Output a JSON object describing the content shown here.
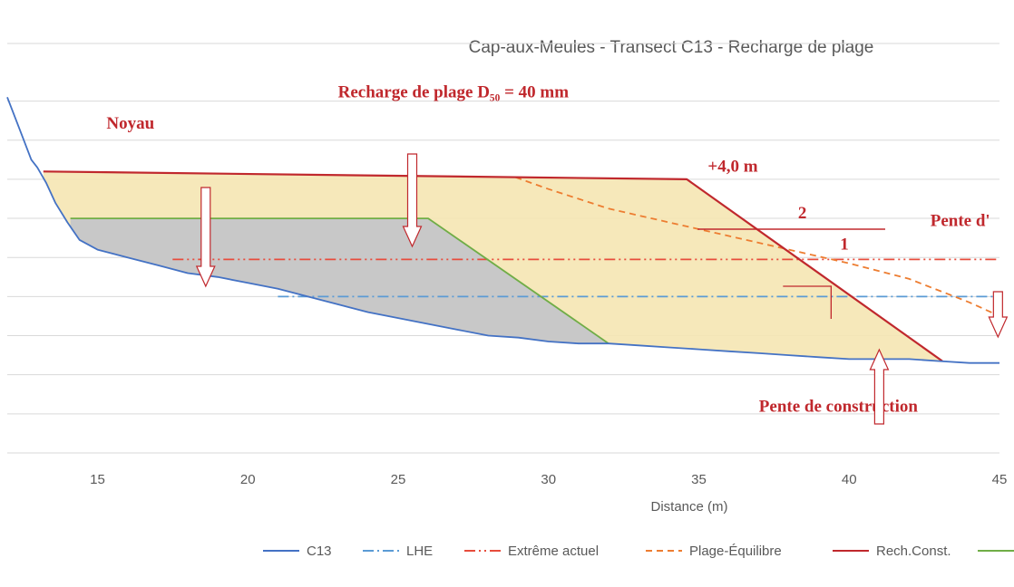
{
  "chart_data": {
    "type": "area",
    "title": "Cap-aux-Meules - Transect C13 - Recharge de plage",
    "xlabel": "Distance (m)",
    "ylabel": "",
    "xlim": [
      12,
      45
    ],
    "ylim": [
      -1,
      8.5
    ],
    "x_ticks": [
      15,
      20,
      25,
      30,
      35,
      40,
      45
    ],
    "x_tick_labels": [
      "15",
      "20",
      "25",
      "30",
      "35",
      "40",
      "45"
    ],
    "grid": true,
    "legend_position": "bottom",
    "series": [
      {
        "name": "C13",
        "color": "#4472c4",
        "style": "solid",
        "x": [
          12.0,
          12.4,
          12.8,
          13.0,
          13.3,
          13.6,
          14.0,
          14.4,
          15.0,
          16.0,
          17.0,
          18.0,
          19.0,
          20.0,
          21.0,
          22.0,
          23.0,
          24.0,
          25.0,
          26.0,
          27.0,
          28.0,
          29.0,
          30.0,
          31.0,
          32.0,
          33.0,
          34.0,
          35.0,
          36.0,
          37.0,
          38.0,
          39.0,
          40.0,
          41.0,
          42.0,
          43.0,
          44.0,
          45.0
        ],
        "y": [
          8.1,
          7.3,
          6.5,
          6.3,
          5.9,
          5.4,
          4.9,
          4.45,
          4.2,
          4.0,
          3.8,
          3.6,
          3.5,
          3.35,
          3.2,
          3.0,
          2.8,
          2.6,
          2.45,
          2.3,
          2.15,
          2.0,
          1.95,
          1.85,
          1.8,
          1.8,
          1.75,
          1.7,
          1.65,
          1.6,
          1.55,
          1.5,
          1.45,
          1.4,
          1.4,
          1.4,
          1.35,
          1.3,
          1.3
        ]
      },
      {
        "name": "LHE",
        "color": "#5b9bd5",
        "style": "dash-dot",
        "x": [
          21.0,
          45.0
        ],
        "y": [
          3.0,
          3.0
        ]
      },
      {
        "name": "Extrême actuel",
        "color": "#e74c3c",
        "style": "dash-dot-dot",
        "x": [
          17.5,
          45.0
        ],
        "y": [
          3.95,
          3.95
        ]
      },
      {
        "name": "Plage-Équilibre",
        "color": "#ed7d31",
        "style": "dashed",
        "x": [
          28.9,
          30.0,
          32.0,
          34.0,
          36.0,
          38.0,
          40.0,
          42.0,
          44.0,
          45.0
        ],
        "y": [
          6.05,
          5.75,
          5.25,
          4.9,
          4.55,
          4.2,
          3.85,
          3.45,
          2.85,
          2.5
        ]
      },
      {
        "name": "Rech.Const.",
        "color": "#c0282d",
        "style": "solid",
        "x": [
          13.2,
          34.6,
          43.1
        ],
        "y": [
          6.2,
          6.0,
          1.35
        ]
      },
      {
        "name": "",
        "color": "#70ad47",
        "style": "solid",
        "x": [
          14.1,
          26.0,
          32.0
        ],
        "y": [
          5.0,
          5.0,
          1.8
        ]
      }
    ],
    "annotations": [
      {
        "text": "Recharge de plage D₅₀ = 40 mm",
        "x": 23.0,
        "y": 8.1
      },
      {
        "text": "Noyau",
        "x": 15.3,
        "y": 7.3
      },
      {
        "text": "+4,0 m",
        "x": 35.3,
        "y": 6.2
      },
      {
        "text": "2",
        "x": 38.3,
        "y": 5.0
      },
      {
        "text": "1",
        "x": 39.7,
        "y": 4.2
      },
      {
        "text": "Pente d'",
        "x": 42.7,
        "y": 4.8
      },
      {
        "text": "Pente de construction",
        "x": 37.0,
        "y": 0.05
      }
    ]
  }
}
